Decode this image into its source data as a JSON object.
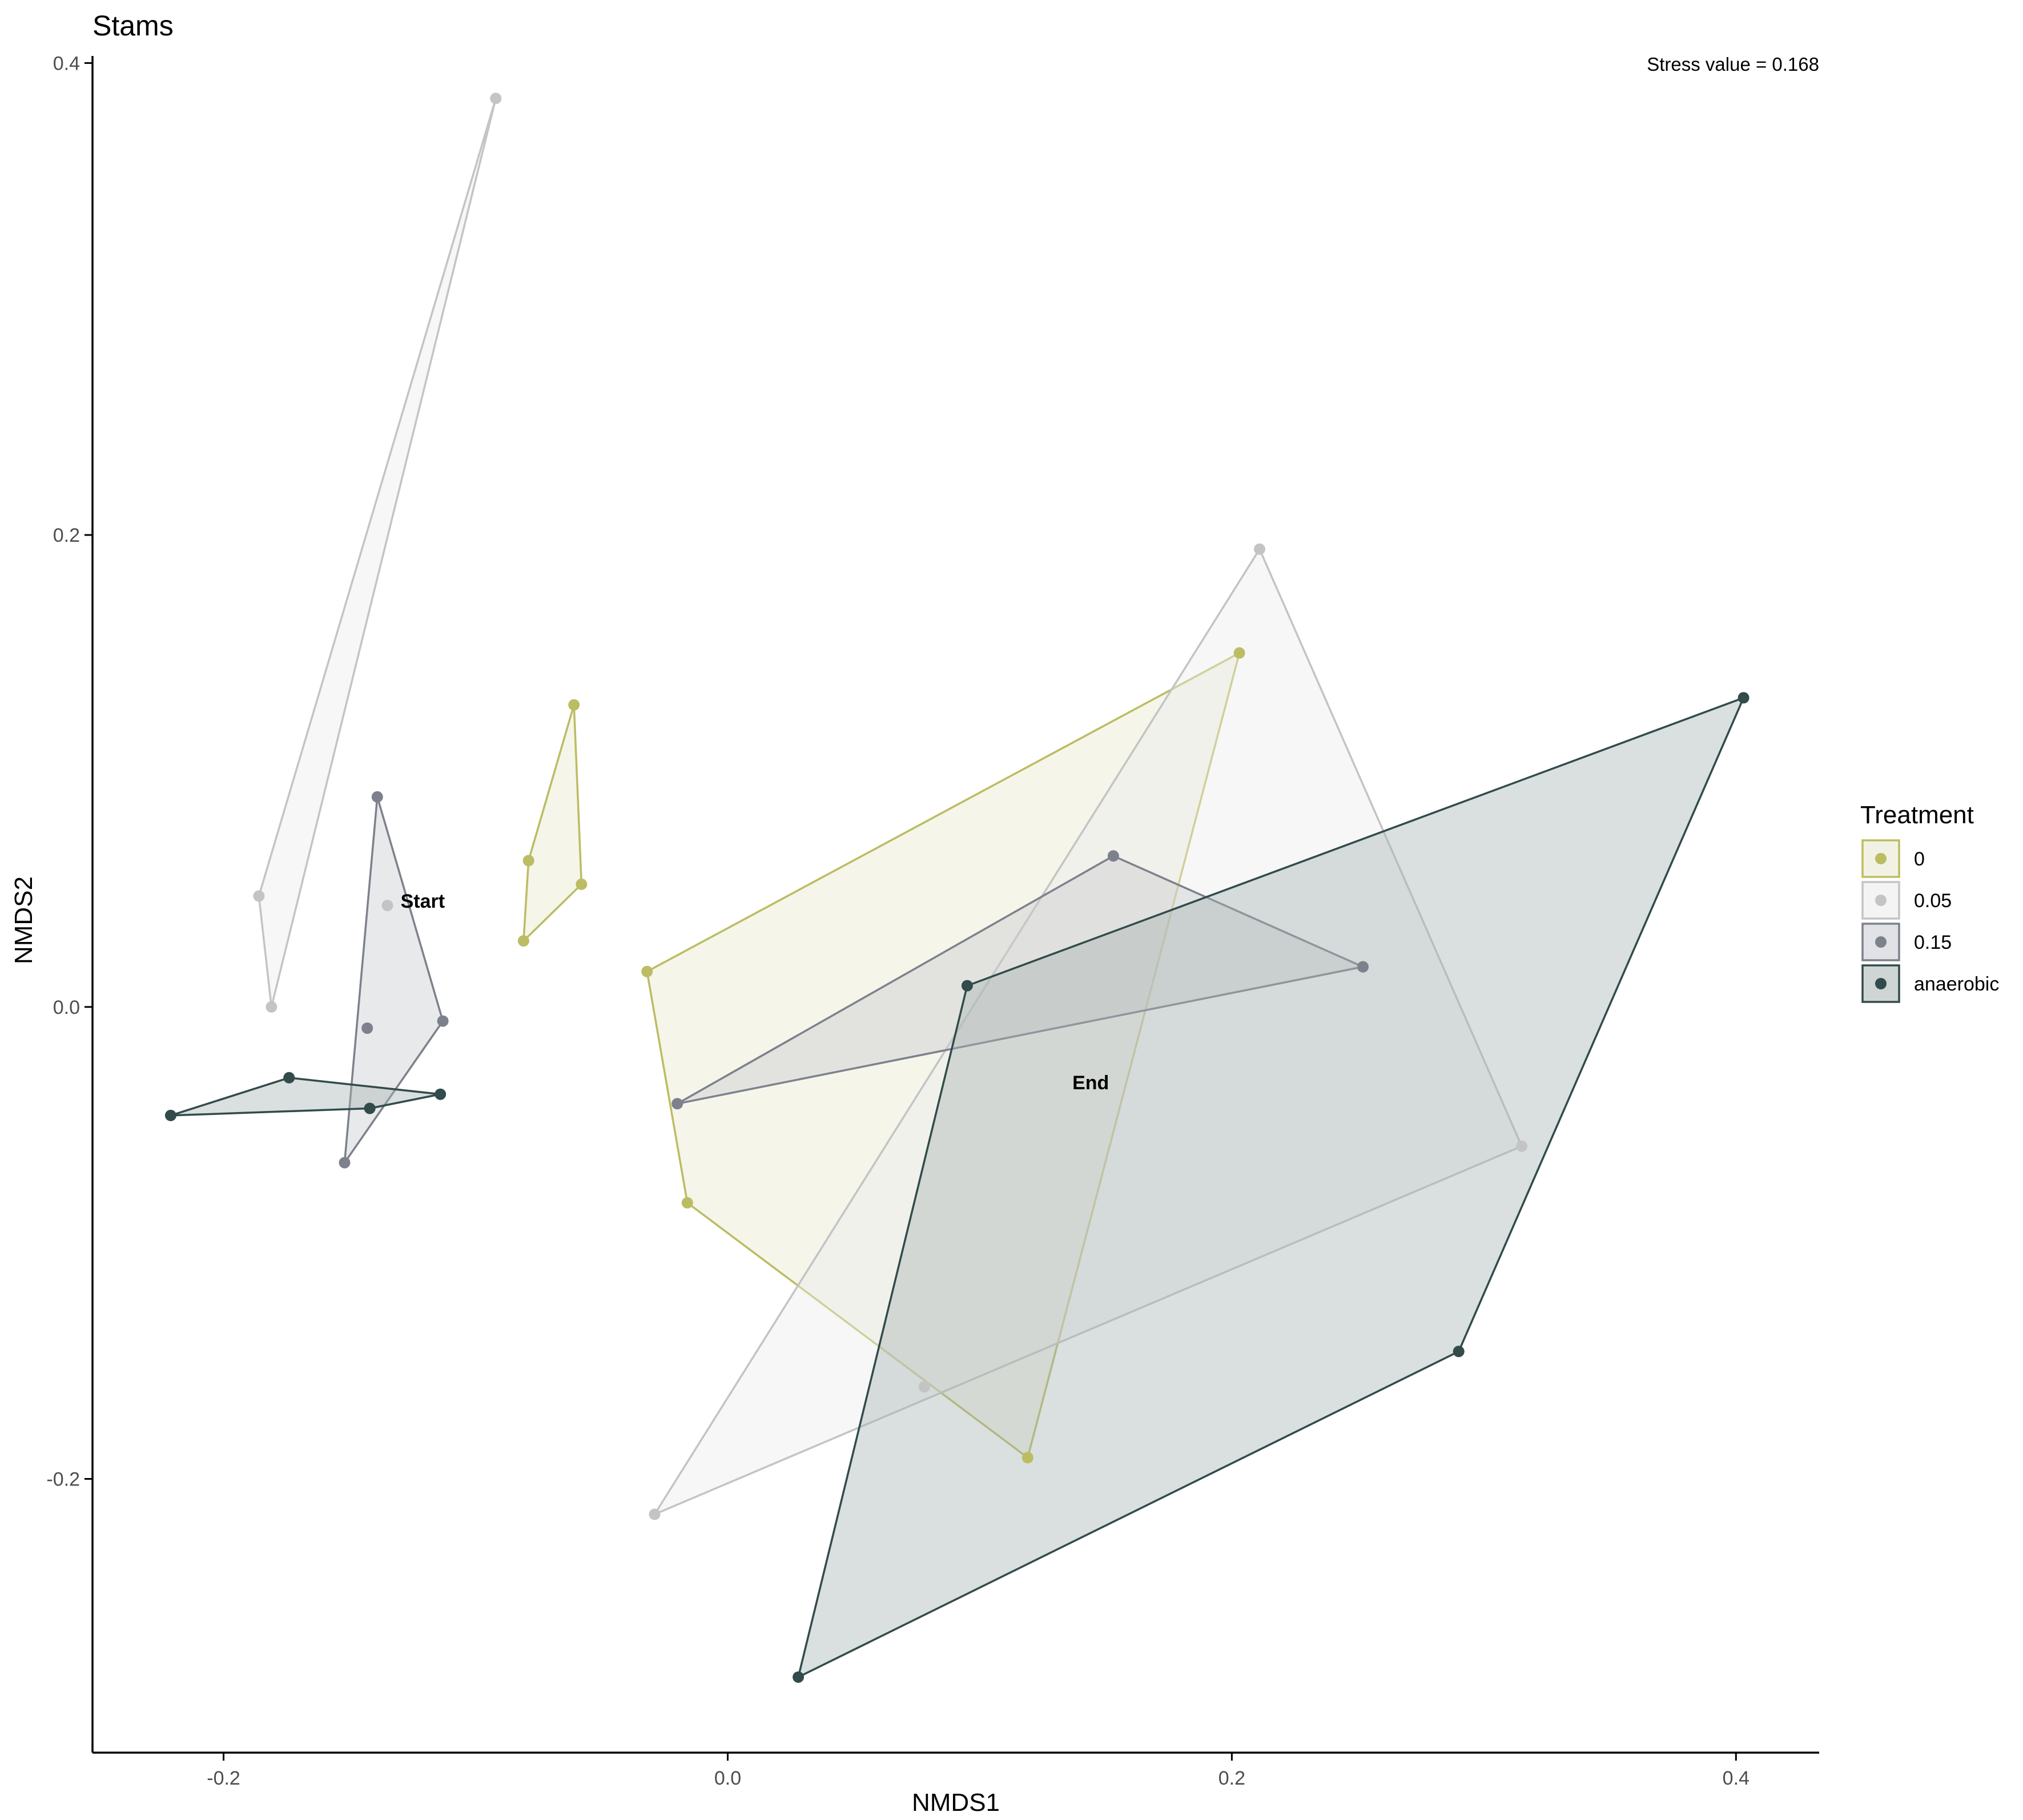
{
  "chart_data": {
    "type": "scatter",
    "title": "Stams",
    "xlabel": "NMDS1",
    "ylabel": "NMDS2",
    "xlim": [
      -0.252,
      0.433
    ],
    "ylim": [
      -0.316,
      0.403
    ],
    "xticks": [
      -0.2,
      0.0,
      0.2,
      0.4
    ],
    "xtick_labels": [
      "-0.2",
      "0.0",
      "0.2",
      "0.4"
    ],
    "yticks": [
      -0.2,
      0.0,
      0.2,
      0.4
    ],
    "ytick_labels": [
      "-0.2",
      "0.0",
      "0.2",
      "0.4"
    ],
    "grid": false,
    "stress_label": "Stress value = 0.168",
    "legend_title": "Treatment",
    "legend_position": "right",
    "annotations": [
      {
        "text": "Start",
        "x": -0.121,
        "y": 0.045
      },
      {
        "text": "End",
        "x": 0.144,
        "y": -0.032
      }
    ],
    "series": [
      {
        "name": "0",
        "color": "#bcbc63",
        "fill": "#e8e8ce",
        "hulls": [
          [
            [
              -0.061,
              0.128
            ],
            [
              -0.058,
              0.052
            ],
            [
              -0.081,
              0.028
            ],
            [
              -0.079,
              0.062
            ]
          ],
          [
            [
              0.203,
              0.15
            ],
            [
              0.119,
              -0.191
            ],
            [
              -0.016,
              -0.083
            ],
            [
              -0.032,
              0.015
            ]
          ]
        ],
        "points": [
          [
            -0.061,
            0.128
          ],
          [
            -0.058,
            0.052
          ],
          [
            -0.081,
            0.028
          ],
          [
            -0.079,
            0.062
          ],
          [
            0.203,
            0.15
          ],
          [
            0.119,
            -0.191
          ],
          [
            -0.016,
            -0.083
          ],
          [
            -0.032,
            0.015
          ]
        ]
      },
      {
        "name": "0.05",
        "color": "#c4c4c4",
        "fill": "#ebebeb",
        "hulls": [
          [
            [
              -0.092,
              0.385
            ],
            [
              -0.181,
              0.0
            ],
            [
              -0.186,
              0.047
            ]
          ],
          [
            [
              0.211,
              0.194
            ],
            [
              0.315,
              -0.059
            ],
            [
              -0.029,
              -0.215
            ]
          ]
        ],
        "points": [
          [
            -0.092,
            0.385
          ],
          [
            -0.135,
            0.043
          ],
          [
            -0.181,
            0.0
          ],
          [
            -0.186,
            0.047
          ],
          [
            0.211,
            0.194
          ],
          [
            0.315,
            -0.059
          ],
          [
            -0.029,
            -0.215
          ],
          [
            0.078,
            -0.161
          ]
        ]
      },
      {
        "name": "0.15",
        "color": "#7d818c",
        "fill": "#c8cbd0",
        "hulls": [
          [
            [
              -0.139,
              0.089
            ],
            [
              -0.113,
              -0.006
            ],
            [
              -0.152,
              -0.066
            ]
          ],
          [
            [
              0.153,
              0.064
            ],
            [
              0.252,
              0.017
            ],
            [
              -0.02,
              -0.041
            ]
          ]
        ],
        "points": [
          [
            -0.139,
            0.089
          ],
          [
            -0.113,
            -0.006
          ],
          [
            -0.152,
            -0.066
          ],
          [
            -0.143,
            -0.009
          ],
          [
            0.153,
            0.064
          ],
          [
            0.252,
            0.017
          ],
          [
            -0.02,
            -0.041
          ]
        ]
      },
      {
        "name": "anaerobic",
        "color": "#324b4b",
        "fill": "#a7b2b3",
        "hulls": [
          [
            [
              -0.174,
              -0.03
            ],
            [
              -0.114,
              -0.037
            ],
            [
              -0.142,
              -0.043
            ],
            [
              -0.221,
              -0.046
            ]
          ],
          [
            [
              0.403,
              0.131
            ],
            [
              0.29,
              -0.146
            ],
            [
              0.028,
              -0.284
            ],
            [
              0.095,
              0.009
            ]
          ]
        ],
        "points": [
          [
            -0.174,
            -0.03
          ],
          [
            -0.114,
            -0.037
          ],
          [
            -0.142,
            -0.043
          ],
          [
            -0.221,
            -0.046
          ],
          [
            0.403,
            0.131
          ],
          [
            0.29,
            -0.146
          ],
          [
            0.028,
            -0.284
          ],
          [
            0.095,
            0.009
          ]
        ]
      }
    ]
  }
}
